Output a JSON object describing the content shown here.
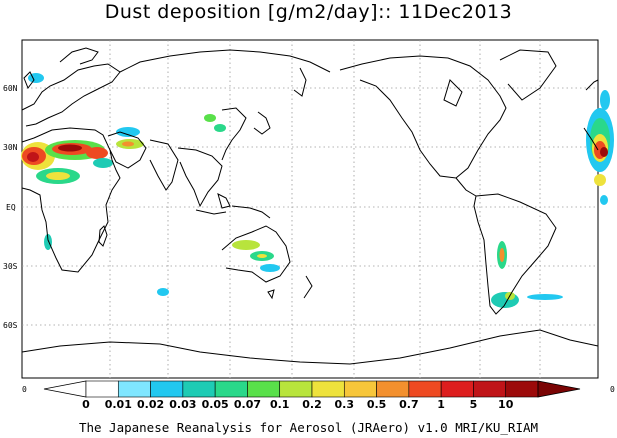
{
  "title": "Dust deposition [g/m2/day]:: 11Dec2013",
  "footer": "The Japanese Reanalysis for Aerosol (JRAero) v1.0 MRI/KU_RIAM",
  "lat_labels": [
    "60N",
    "30N",
    "EQ",
    "30S",
    "60S"
  ],
  "colorbar": {
    "edge_left": "0",
    "edge_right": "0",
    "levels": [
      "0",
      "0.01",
      "0.02",
      "0.03",
      "0.05",
      "0.07",
      "0.1",
      "0.2",
      "0.3",
      "0.5",
      "0.7",
      "1",
      "5",
      "10"
    ],
    "colors": [
      "#ffffff",
      "#ffffff",
      "#7fe6ff",
      "#22c8f0",
      "#1ecbb4",
      "#2ad88a",
      "#59e04a",
      "#b8e43c",
      "#eee23c",
      "#f7c63a",
      "#f3902e",
      "#ee4a22",
      "#dd1e1e",
      "#c01418",
      "#9c0a0a",
      "#7a0404"
    ]
  }
}
